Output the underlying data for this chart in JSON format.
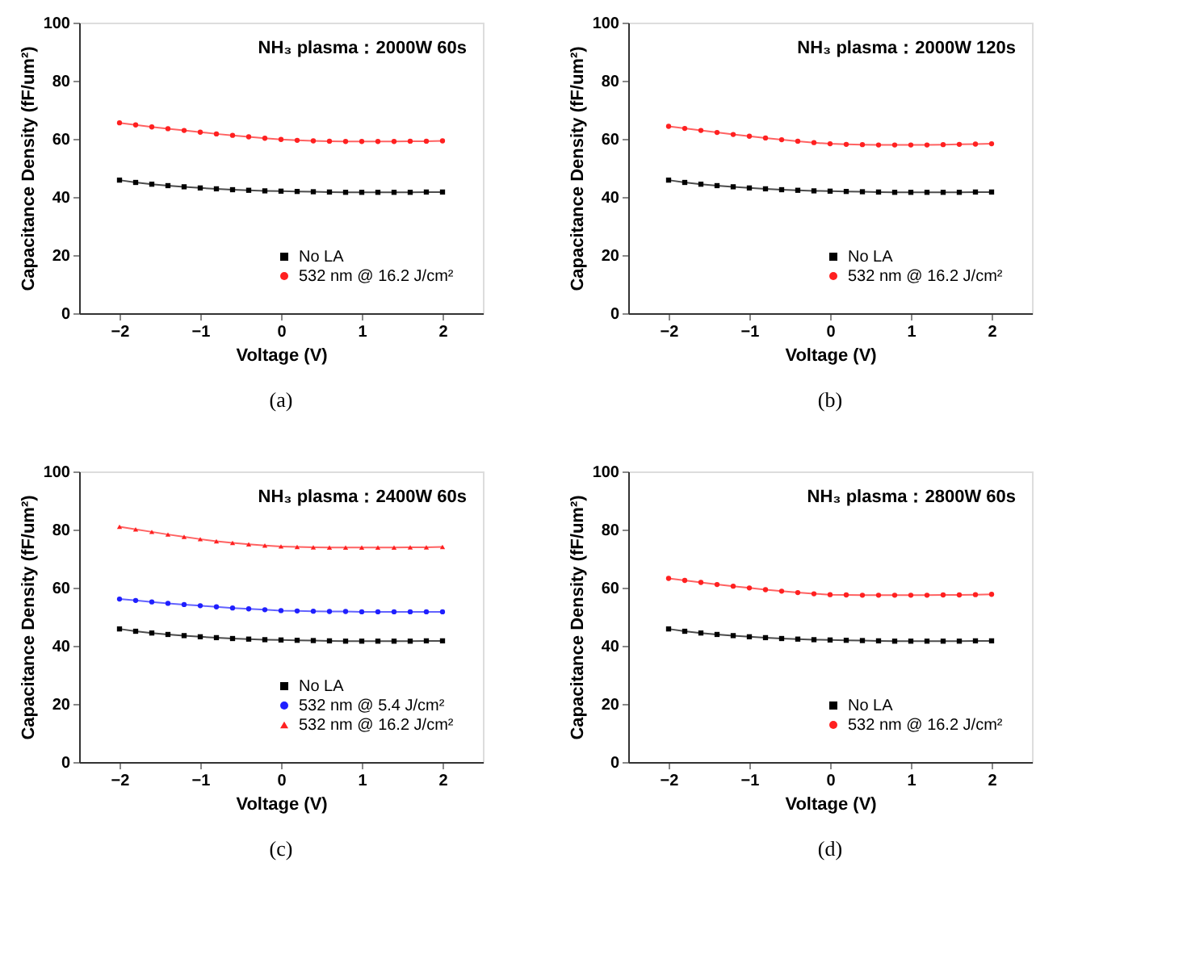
{
  "chart_data": [
    {
      "type": "line",
      "title": "NH₃ plasma：2000W 60s",
      "xlabel": "Voltage (V)",
      "ylabel": "Capacitance Density (fF/um²)",
      "annotations": [
        "(a)"
      ],
      "legend": "bottom right",
      "grid": false,
      "line_style": "solid",
      "x": [
        -2,
        -1.8,
        -1.6,
        -1.4,
        -1.2,
        -1,
        -0.8,
        -0.6,
        -0.4,
        -0.2,
        0,
        0.2,
        0.4,
        0.6,
        0.8,
        1,
        1.2,
        1.4,
        1.6,
        1.8,
        2
      ],
      "xlim": [
        -2.5,
        2.5
      ],
      "xticks": [
        -2,
        -1,
        0,
        1,
        2
      ],
      "ylim": [
        0,
        100
      ],
      "yticks": [
        0,
        20,
        40,
        60,
        80,
        100
      ],
      "series": [
        {
          "name": "No LA",
          "color": "#000000",
          "marker": "square",
          "values": [
            45.8,
            45.0,
            44.4,
            43.9,
            43.5,
            43.1,
            42.8,
            42.5,
            42.3,
            42.1,
            42.0,
            41.9,
            41.8,
            41.7,
            41.6,
            41.6,
            41.6,
            41.6,
            41.6,
            41.7,
            41.7
          ]
        },
        {
          "name": "532 nm @ 16.2 J/cm²",
          "color": "#ff2020",
          "marker": "circle",
          "values": [
            65.5,
            64.8,
            64.1,
            63.5,
            62.9,
            62.3,
            61.7,
            61.2,
            60.7,
            60.2,
            59.8,
            59.5,
            59.3,
            59.2,
            59.1,
            59.1,
            59.1,
            59.1,
            59.2,
            59.2,
            59.3
          ]
        }
      ]
    },
    {
      "type": "line",
      "title": "NH₃ plasma：2000W 120s",
      "xlabel": "Voltage (V)",
      "ylabel": "Capacitance Density (fF/um²)",
      "annotations": [
        "(b)"
      ],
      "legend": "bottom right",
      "grid": false,
      "line_style": "solid",
      "x": [
        -2,
        -1.8,
        -1.6,
        -1.4,
        -1.2,
        -1,
        -0.8,
        -0.6,
        -0.4,
        -0.2,
        0,
        0.2,
        0.4,
        0.6,
        0.8,
        1,
        1.2,
        1.4,
        1.6,
        1.8,
        2
      ],
      "xlim": [
        -2.5,
        2.5
      ],
      "xticks": [
        -2,
        -1,
        0,
        1,
        2
      ],
      "ylim": [
        0,
        100
      ],
      "yticks": [
        0,
        20,
        40,
        60,
        80,
        100
      ],
      "series": [
        {
          "name": "No LA",
          "color": "#000000",
          "marker": "square",
          "values": [
            45.8,
            45.0,
            44.4,
            43.9,
            43.5,
            43.1,
            42.8,
            42.5,
            42.3,
            42.1,
            42.0,
            41.9,
            41.8,
            41.7,
            41.6,
            41.6,
            41.6,
            41.6,
            41.6,
            41.7,
            41.7
          ]
        },
        {
          "name": "532 nm @ 16.2 J/cm²",
          "color": "#ff2020",
          "marker": "circle",
          "values": [
            64.3,
            63.6,
            62.9,
            62.2,
            61.5,
            60.9,
            60.3,
            59.7,
            59.2,
            58.7,
            58.3,
            58.1,
            58.0,
            57.9,
            57.9,
            57.9,
            57.9,
            58.0,
            58.1,
            58.2,
            58.3
          ]
        }
      ]
    },
    {
      "type": "line",
      "title": "NH₃ plasma：2400W 60s",
      "xlabel": "Voltage (V)",
      "ylabel": "Capacitance Density (fF/um²)",
      "annotations": [
        "(c)"
      ],
      "legend": "bottom right",
      "grid": false,
      "line_style": "solid",
      "x": [
        -2,
        -1.8,
        -1.6,
        -1.4,
        -1.2,
        -1,
        -0.8,
        -0.6,
        -0.4,
        -0.2,
        0,
        0.2,
        0.4,
        0.6,
        0.8,
        1,
        1.2,
        1.4,
        1.6,
        1.8,
        2
      ],
      "xlim": [
        -2.5,
        2.5
      ],
      "xticks": [
        -2,
        -1,
        0,
        1,
        2
      ],
      "ylim": [
        0,
        100
      ],
      "yticks": [
        0,
        20,
        40,
        60,
        80,
        100
      ],
      "series": [
        {
          "name": "No LA",
          "color": "#000000",
          "marker": "square",
          "values": [
            45.8,
            45.0,
            44.4,
            43.9,
            43.5,
            43.1,
            42.8,
            42.5,
            42.3,
            42.1,
            42.0,
            41.9,
            41.8,
            41.7,
            41.6,
            41.6,
            41.6,
            41.6,
            41.6,
            41.7,
            41.7
          ]
        },
        {
          "name": "532 nm @ 5.4 J/cm²",
          "color": "#1f1fff",
          "marker": "circle",
          "values": [
            56.1,
            55.6,
            55.1,
            54.6,
            54.2,
            53.8,
            53.4,
            53.0,
            52.7,
            52.4,
            52.1,
            52.0,
            51.9,
            51.8,
            51.8,
            51.7,
            51.7,
            51.7,
            51.7,
            51.7,
            51.7
          ]
        },
        {
          "name": "532 nm @ 16.2 J/cm²",
          "color": "#ff2020",
          "marker": "triangle",
          "values": [
            81.0,
            80.1,
            79.2,
            78.3,
            77.5,
            76.7,
            76.0,
            75.4,
            74.9,
            74.5,
            74.2,
            74.0,
            73.9,
            73.8,
            73.8,
            73.8,
            73.8,
            73.8,
            73.9,
            73.9,
            74.0
          ]
        }
      ]
    },
    {
      "type": "line",
      "title": "NH₃ plasma：2800W 60s",
      "xlabel": "Voltage (V)",
      "ylabel": "Capacitance Density (fF/um²)",
      "annotations": [
        "(d)"
      ],
      "legend": "bottom right",
      "grid": false,
      "line_style": "solid",
      "x": [
        -2,
        -1.8,
        -1.6,
        -1.4,
        -1.2,
        -1,
        -0.8,
        -0.6,
        -0.4,
        -0.2,
        0,
        0.2,
        0.4,
        0.6,
        0.8,
        1,
        1.2,
        1.4,
        1.6,
        1.8,
        2
      ],
      "xlim": [
        -2.5,
        2.5
      ],
      "xticks": [
        -2,
        -1,
        0,
        1,
        2
      ],
      "ylim": [
        0,
        100
      ],
      "yticks": [
        0,
        20,
        40,
        60,
        80,
        100
      ],
      "series": [
        {
          "name": "No LA",
          "color": "#000000",
          "marker": "square",
          "values": [
            45.8,
            45.0,
            44.4,
            43.9,
            43.5,
            43.1,
            42.8,
            42.5,
            42.3,
            42.1,
            42.0,
            41.9,
            41.8,
            41.7,
            41.6,
            41.6,
            41.6,
            41.6,
            41.6,
            41.7,
            41.7
          ]
        },
        {
          "name": "532 nm @ 16.2 J/cm²",
          "color": "#ff2020",
          "marker": "circle",
          "values": [
            63.2,
            62.5,
            61.8,
            61.1,
            60.5,
            59.9,
            59.3,
            58.8,
            58.3,
            57.9,
            57.6,
            57.5,
            57.4,
            57.4,
            57.4,
            57.4,
            57.4,
            57.5,
            57.5,
            57.6,
            57.7
          ]
        }
      ]
    }
  ]
}
